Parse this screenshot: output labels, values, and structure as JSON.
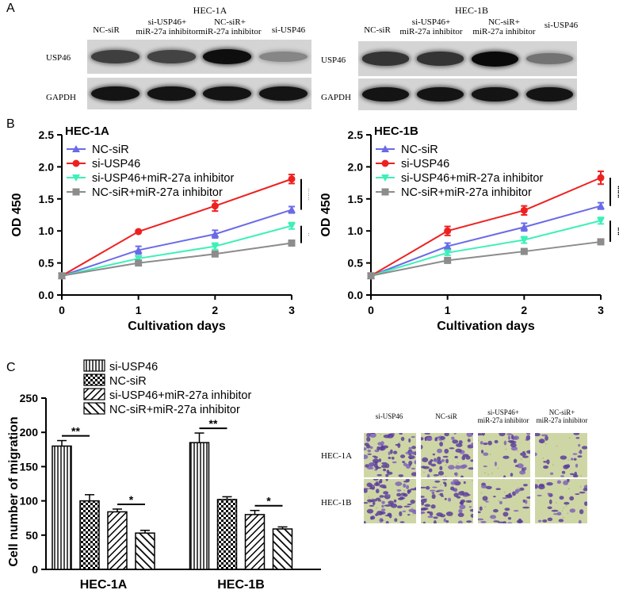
{
  "panel_a": {
    "letter": "A",
    "blots": [
      {
        "title": "HEC-1A",
        "lanes": [
          {
            "line1": "NC-siR",
            "line2": ""
          },
          {
            "line1": "si-USP46+",
            "line2": "miR-27a inhibitor"
          },
          {
            "line1": "NC-siR+",
            "line2": "miR-27a inhibitor"
          },
          {
            "line1": "si-USP46",
            "line2": ""
          }
        ],
        "rows": [
          {
            "label": "USP46",
            "intensity": [
              0.72,
              0.7,
              0.98,
              0.35
            ]
          },
          {
            "label": "GAPDH",
            "intensity": [
              0.95,
              0.95,
              0.95,
              0.95
            ]
          }
        ]
      },
      {
        "title": "HEC-1B",
        "lanes": [
          {
            "line1": "NC-siR",
            "line2": ""
          },
          {
            "line1": "si-USP46+",
            "line2": "miR-27a inhibitor"
          },
          {
            "line1": "NC-siR+",
            "line2": "miR-27a inhibitor"
          },
          {
            "line1": "si-USP46",
            "line2": ""
          }
        ],
        "rows": [
          {
            "label": "USP46",
            "intensity": [
              0.78,
              0.78,
              1.0,
              0.45
            ]
          },
          {
            "label": "GAPDH",
            "intensity": [
              0.95,
              0.95,
              0.95,
              0.95
            ]
          }
        ]
      }
    ]
  },
  "panel_b": {
    "letter": "B"
  },
  "panel_c": {
    "letter": "C",
    "microscopy": {
      "columns": [
        {
          "line1": "si-USP46",
          "line2": ""
        },
        {
          "line1": "NC-siR",
          "line2": ""
        },
        {
          "line1": "si-USP46+",
          "line2": "miR-27a inhibitor"
        },
        {
          "line1": "NC-siR+",
          "line2": "miR-27a inhibitor"
        }
      ],
      "rows": [
        "HEC-1A",
        "HEC-1B"
      ],
      "cell_density": [
        0.95,
        0.75,
        0.35,
        0.25
      ]
    }
  },
  "chart_data": [
    {
      "type": "line",
      "panel": "B",
      "title": "HEC-1A",
      "xlabel": "Cultivation days",
      "ylabel": "OD 450",
      "x": [
        0,
        1,
        2,
        3
      ],
      "xlim": [
        0,
        3
      ],
      "ylim": [
        0,
        2.5
      ],
      "yticks": [
        "0.0",
        "0.5",
        "1.0",
        "1.5",
        "2.0",
        "2.5"
      ],
      "legend_position": "top-left",
      "series": [
        {
          "name": "NC-siR",
          "marker": "triangle",
          "color": "#6a6ae8",
          "values": [
            0.3,
            0.7,
            0.95,
            1.33
          ],
          "errors": [
            0.02,
            0.06,
            0.06,
            0.05
          ]
        },
        {
          "name": "si-USP46",
          "marker": "circle",
          "color": "#ee2020",
          "values": [
            0.3,
            0.99,
            1.39,
            1.81
          ],
          "errors": [
            0.02,
            0.02,
            0.08,
            0.07
          ]
        },
        {
          "name": "si-USP46+miR-27a inhibitor",
          "marker": "triangle-down",
          "color": "#3ef0b8",
          "values": [
            0.3,
            0.57,
            0.76,
            1.08
          ],
          "errors": [
            0.02,
            0.04,
            0.05,
            0.05
          ]
        },
        {
          "name": "NC-siR+miR-27a inhibitor",
          "marker": "square",
          "color": "#8c8c8c",
          "values": [
            0.3,
            0.5,
            0.64,
            0.81
          ],
          "errors": [
            0.02,
            0.03,
            0.03,
            0.04
          ]
        }
      ],
      "significance": [
        {
          "text": "***"
        },
        {
          "text": "*"
        }
      ]
    },
    {
      "type": "line",
      "panel": "B",
      "title": "HEC-1B",
      "xlabel": "Cultivation days",
      "ylabel": "OD 450",
      "x": [
        0,
        1,
        2,
        3
      ],
      "xlim": [
        0,
        3
      ],
      "ylim": [
        0,
        2.5
      ],
      "yticks": [
        "0.0",
        "0.5",
        "1.0",
        "1.5",
        "2.0",
        "2.5"
      ],
      "legend_position": "top-left",
      "series": [
        {
          "name": "NC-siR",
          "marker": "triangle",
          "color": "#6a6ae8",
          "values": [
            0.3,
            0.76,
            1.06,
            1.39
          ],
          "errors": [
            0.02,
            0.05,
            0.06,
            0.05
          ]
        },
        {
          "name": "si-USP46",
          "marker": "circle",
          "color": "#ee2020",
          "values": [
            0.3,
            1.0,
            1.32,
            1.83
          ],
          "errors": [
            0.02,
            0.07,
            0.07,
            0.1
          ]
        },
        {
          "name": "si-USP46+miR-27a inhibitor",
          "marker": "triangle-down",
          "color": "#3ef0b8",
          "values": [
            0.3,
            0.66,
            0.86,
            1.16
          ],
          "errors": [
            0.02,
            0.04,
            0.05,
            0.05
          ]
        },
        {
          "name": "NC-siR+miR-27a inhibitor",
          "marker": "square",
          "color": "#8c8c8c",
          "values": [
            0.3,
            0.54,
            0.68,
            0.83
          ],
          "errors": [
            0.02,
            0.03,
            0.03,
            0.03
          ]
        }
      ],
      "significance": [
        {
          "text": "***"
        },
        {
          "text": "**"
        }
      ]
    },
    {
      "type": "bar",
      "panel": "C",
      "ylabel": "Cell number of migration",
      "xlabel": "",
      "categories": [
        "HEC-1A",
        "HEC-1B"
      ],
      "ylim": [
        0,
        250
      ],
      "yticks": [
        "0",
        "50",
        "100",
        "150",
        "200",
        "250"
      ],
      "legend_position": "top",
      "series": [
        {
          "name": "si-USP46",
          "pattern": "vertical",
          "values": [
            180,
            185
          ],
          "errors": [
            8,
            14
          ]
        },
        {
          "name": "NC-siR",
          "pattern": "checker",
          "values": [
            100,
            102
          ],
          "errors": [
            9,
            4
          ]
        },
        {
          "name": "si-USP46+miR-27a inhibitor",
          "pattern": "diag-down",
          "values": [
            84,
            80
          ],
          "errors": [
            4,
            6
          ]
        },
        {
          "name": "NC-siR+miR-27a inhibitor",
          "pattern": "diag-up",
          "values": [
            53,
            59
          ],
          "errors": [
            4,
            3
          ]
        }
      ],
      "significance": [
        {
          "category": 0,
          "pair": [
            0,
            1
          ],
          "text": "**"
        },
        {
          "category": 0,
          "pair": [
            2,
            3
          ],
          "text": "*"
        },
        {
          "category": 1,
          "pair": [
            0,
            1
          ],
          "text": "**"
        },
        {
          "category": 1,
          "pair": [
            2,
            3
          ],
          "text": "*"
        }
      ]
    }
  ]
}
